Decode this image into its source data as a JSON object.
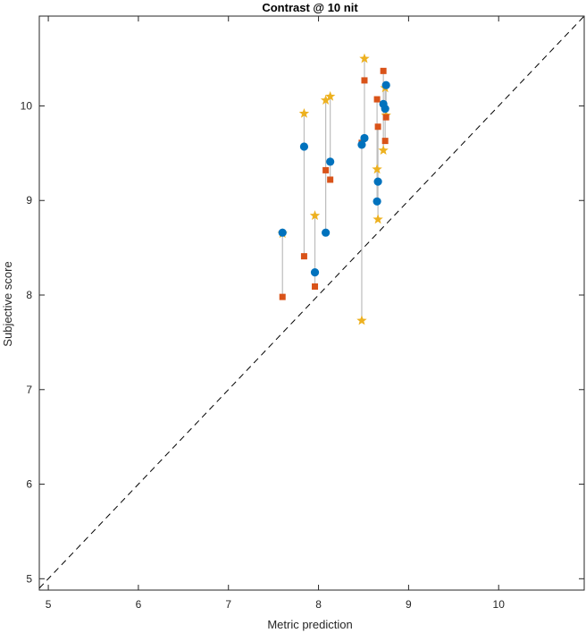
{
  "chart_data": {
    "type": "scatter",
    "title": "Contrast @ 10 nit",
    "xlabel": "Metric prediction",
    "ylabel": "Subjective score",
    "xlim": [
      4.9,
      10.95
    ],
    "ylim": [
      4.88,
      10.95
    ],
    "xticks": [
      "5",
      "6",
      "7",
      "8",
      "9",
      "10"
    ],
    "yticks": [
      "5",
      "6",
      "7",
      "8",
      "9",
      "10"
    ],
    "grid": false,
    "legend": "none",
    "reference_line": {
      "style": "dashed",
      "from": [
        4.9,
        4.9
      ],
      "to": [
        10.95,
        10.95
      ]
    },
    "colors": {
      "series1": "#0072BD",
      "series2": "#D95319",
      "series3": "#EDB120",
      "connector": "#BDBDBD"
    },
    "groups": [
      {
        "x": 7.6,
        "values": [
          8.66,
          7.98,
          8.65
        ]
      },
      {
        "x": 7.84,
        "values": [
          9.57,
          8.41,
          9.92
        ]
      },
      {
        "x": 7.96,
        "values": [
          8.24,
          8.09,
          8.84
        ]
      },
      {
        "x": 8.08,
        "values": [
          8.66,
          9.32,
          10.06
        ]
      },
      {
        "x": 8.13,
        "values": [
          9.41,
          9.22,
          10.1
        ]
      },
      {
        "x": 8.48,
        "values": [
          9.59,
          9.61,
          7.73
        ]
      },
      {
        "x": 8.51,
        "values": [
          9.66,
          10.27,
          10.5
        ]
      },
      {
        "x": 8.65,
        "values": [
          8.99,
          10.07,
          9.33
        ]
      },
      {
        "x": 8.66,
        "values": [
          9.2,
          9.78,
          8.8
        ]
      },
      {
        "x": 8.72,
        "values": [
          10.02,
          10.37,
          9.53
        ]
      },
      {
        "x": 8.74,
        "values": [
          9.97,
          9.63,
          10.19
        ]
      },
      {
        "x": 8.75,
        "values": [
          10.22,
          9.88,
          9.9
        ]
      }
    ]
  }
}
